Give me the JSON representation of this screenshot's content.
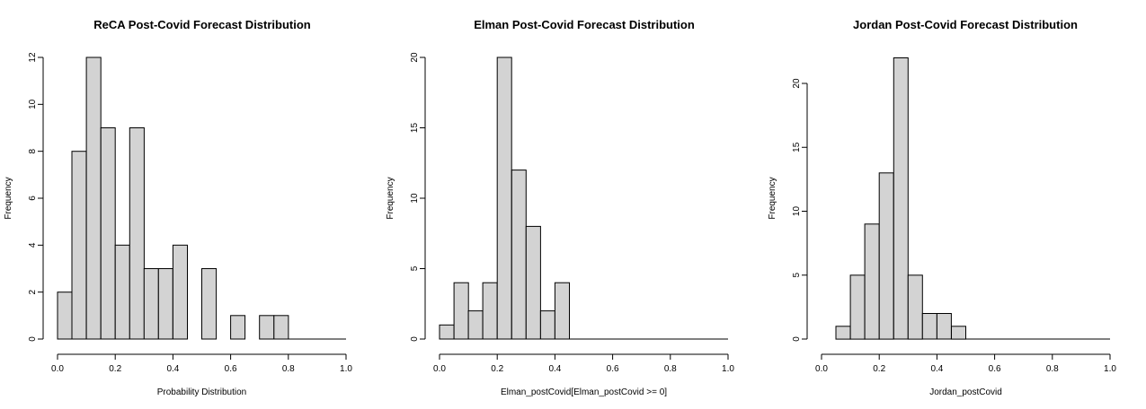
{
  "chart_data": [
    {
      "type": "bar",
      "title": "ReCA Post-Covid Forecast Distribution",
      "xlabel": "Probability Distribution",
      "ylabel": "Frequency",
      "xlim": [
        0,
        1
      ],
      "ylim": [
        0,
        12
      ],
      "bin_width": 0.05,
      "bins_start": [
        0.0,
        0.05,
        0.1,
        0.15,
        0.2,
        0.25,
        0.3,
        0.35,
        0.4,
        0.45,
        0.5,
        0.55,
        0.6,
        0.65,
        0.7,
        0.75
      ],
      "values": [
        2,
        8,
        12,
        9,
        4,
        9,
        3,
        3,
        4,
        0,
        3,
        0,
        1,
        0,
        1,
        1
      ],
      "x_ticks": [
        "0.0",
        "0.2",
        "0.4",
        "0.6",
        "0.8",
        "1.0"
      ],
      "y_ticks": [
        "0",
        "2",
        "4",
        "6",
        "8",
        "10",
        "12"
      ]
    },
    {
      "type": "bar",
      "title": "Elman Post-Covid Forecast Distribution",
      "xlabel": "Elman_postCovid[Elman_postCovid >= 0]",
      "ylabel": "Frequency",
      "xlim": [
        0,
        1
      ],
      "ylim": [
        0,
        20
      ],
      "bin_width": 0.05,
      "bins_start": [
        0.0,
        0.05,
        0.1,
        0.15,
        0.2,
        0.25,
        0.3,
        0.35,
        0.4
      ],
      "values": [
        1,
        4,
        2,
        4,
        20,
        12,
        8,
        2,
        4
      ],
      "x_ticks": [
        "0.0",
        "0.2",
        "0.4",
        "0.6",
        "0.8",
        "1.0"
      ],
      "y_ticks": [
        "0",
        "5",
        "10",
        "15",
        "20"
      ]
    },
    {
      "type": "bar",
      "title": "Jordan Post-Covid Forecast Distribution",
      "xlabel": "Jordan_postCovid",
      "ylabel": "Frequency",
      "xlim": [
        0,
        1
      ],
      "ylim": [
        0,
        22
      ],
      "bin_width": 0.05,
      "bins_start": [
        0.05,
        0.1,
        0.15,
        0.2,
        0.25,
        0.3,
        0.35,
        0.4,
        0.45
      ],
      "values": [
        1,
        5,
        9,
        13,
        22,
        5,
        2,
        2,
        1
      ],
      "x_ticks": [
        "0.0",
        "0.2",
        "0.4",
        "0.6",
        "0.8",
        "1.0"
      ],
      "y_ticks": [
        "0",
        "5",
        "10",
        "15",
        "20"
      ]
    }
  ]
}
